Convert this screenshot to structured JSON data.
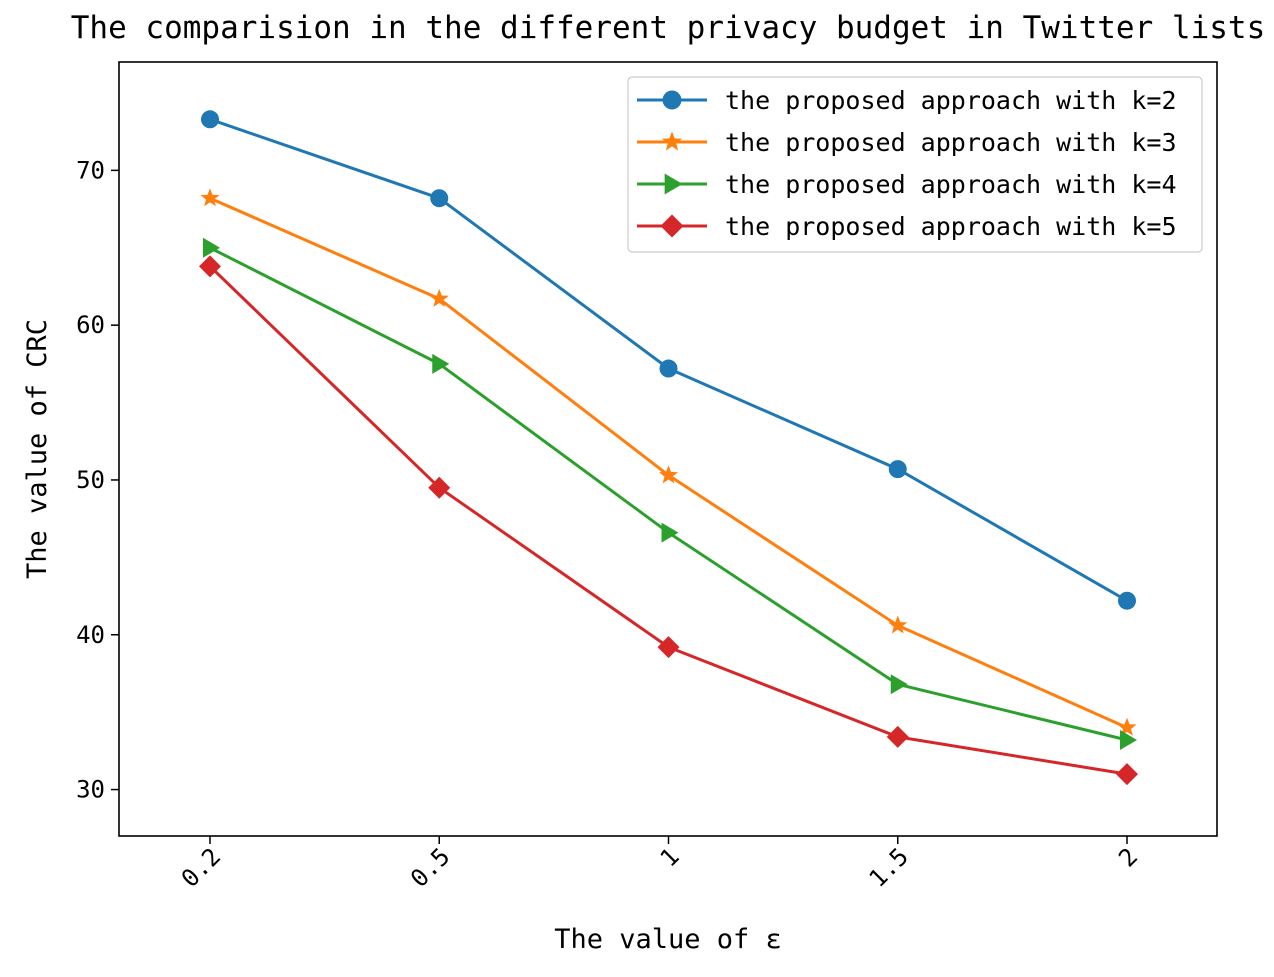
{
  "chart_data": {
    "type": "line",
    "title": "The comparision in the different privacy budget in Twitter lists",
    "xlabel": "The value of ε",
    "ylabel": "The value of CRC",
    "categories": [
      "0.2",
      "0.5",
      "1",
      "1.5",
      "2"
    ],
    "ylim": [
      27,
      77
    ],
    "yticks": [
      30,
      40,
      50,
      60,
      70
    ],
    "grid": false,
    "legend_position": "top-right",
    "series": [
      {
        "name": "the proposed approach with k=2",
        "values": [
          73.3,
          68.2,
          57.2,
          50.7,
          42.2
        ],
        "color": "#1f77b4",
        "marker": "circle"
      },
      {
        "name": "the proposed approach with k=3",
        "values": [
          68.2,
          61.7,
          50.3,
          40.6,
          34.0
        ],
        "color": "#ff7f0e",
        "marker": "star"
      },
      {
        "name": "the proposed approach with k=4",
        "values": [
          65.0,
          57.5,
          46.6,
          36.8,
          33.2
        ],
        "color": "#2ca02c",
        "marker": "triangle-right"
      },
      {
        "name": "the proposed approach with k=5",
        "values": [
          63.8,
          49.5,
          39.2,
          33.4,
          31.0
        ],
        "color": "#d62728",
        "marker": "diamond"
      }
    ]
  }
}
